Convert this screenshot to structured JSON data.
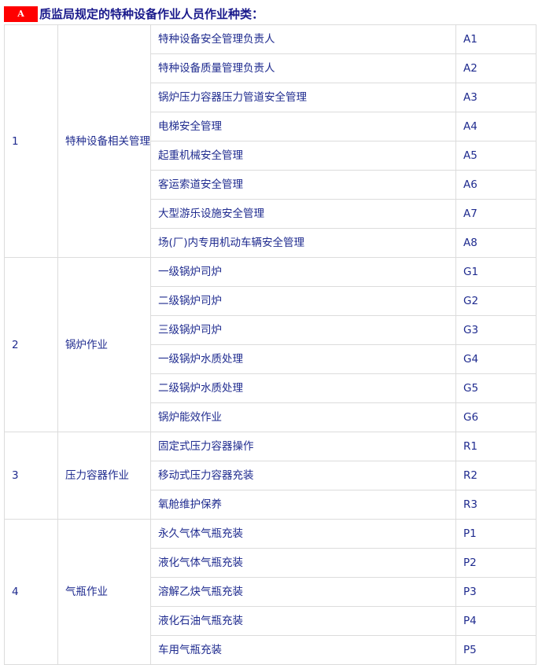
{
  "title": {
    "badge": "A",
    "text": "质监局规定的特种设备作业人员作业种类："
  },
  "groups": [
    {
      "no": "1",
      "category": "特种设备相关管理",
      "items": [
        [
          "特种设备安全管理负责人",
          "A1"
        ],
        [
          "特种设备质量管理负责人",
          "A2"
        ],
        [
          "锅炉压力容器压力管道安全管理",
          "A3"
        ],
        [
          "电梯安全管理",
          "A4"
        ],
        [
          "起重机械安全管理",
          "A5"
        ],
        [
          "客运索道安全管理",
          "A6"
        ],
        [
          "大型游乐设施安全管理",
          "A7"
        ],
        [
          "场(厂)内专用机动车辆安全管理",
          "A8"
        ]
      ]
    },
    {
      "no": "2",
      "category": "锅炉作业",
      "items": [
        [
          "一级锅炉司炉",
          "G1"
        ],
        [
          "二级锅炉司炉",
          "G2"
        ],
        [
          "三级锅炉司炉",
          "G3"
        ],
        [
          "一级锅炉水质处理",
          "G4"
        ],
        [
          "二级锅炉水质处理",
          "G5"
        ],
        [
          "锅炉能效作业",
          "G6"
        ]
      ]
    },
    {
      "no": "3",
      "category": "压力容器作业",
      "items": [
        [
          "固定式压力容器操作",
          "R1"
        ],
        [
          "移动式压力容器充装",
          "R2"
        ],
        [
          "氧舱维护保养",
          "R3"
        ]
      ]
    },
    {
      "no": "4",
      "category": "气瓶作业",
      "items": [
        [
          "永久气体气瓶充装",
          "P1"
        ],
        [
          "液化气体气瓶充装",
          "P2"
        ],
        [
          "溶解乙炔气瓶充装",
          "P3"
        ],
        [
          "液化石油气瓶充装",
          "P4"
        ],
        [
          "车用气瓶充装",
          "P5"
        ]
      ]
    }
  ],
  "colors": {
    "badge": "#ff0000",
    "text": "#1f2b8f",
    "title": "#1a1a8c",
    "border": "#dcdcdc"
  }
}
